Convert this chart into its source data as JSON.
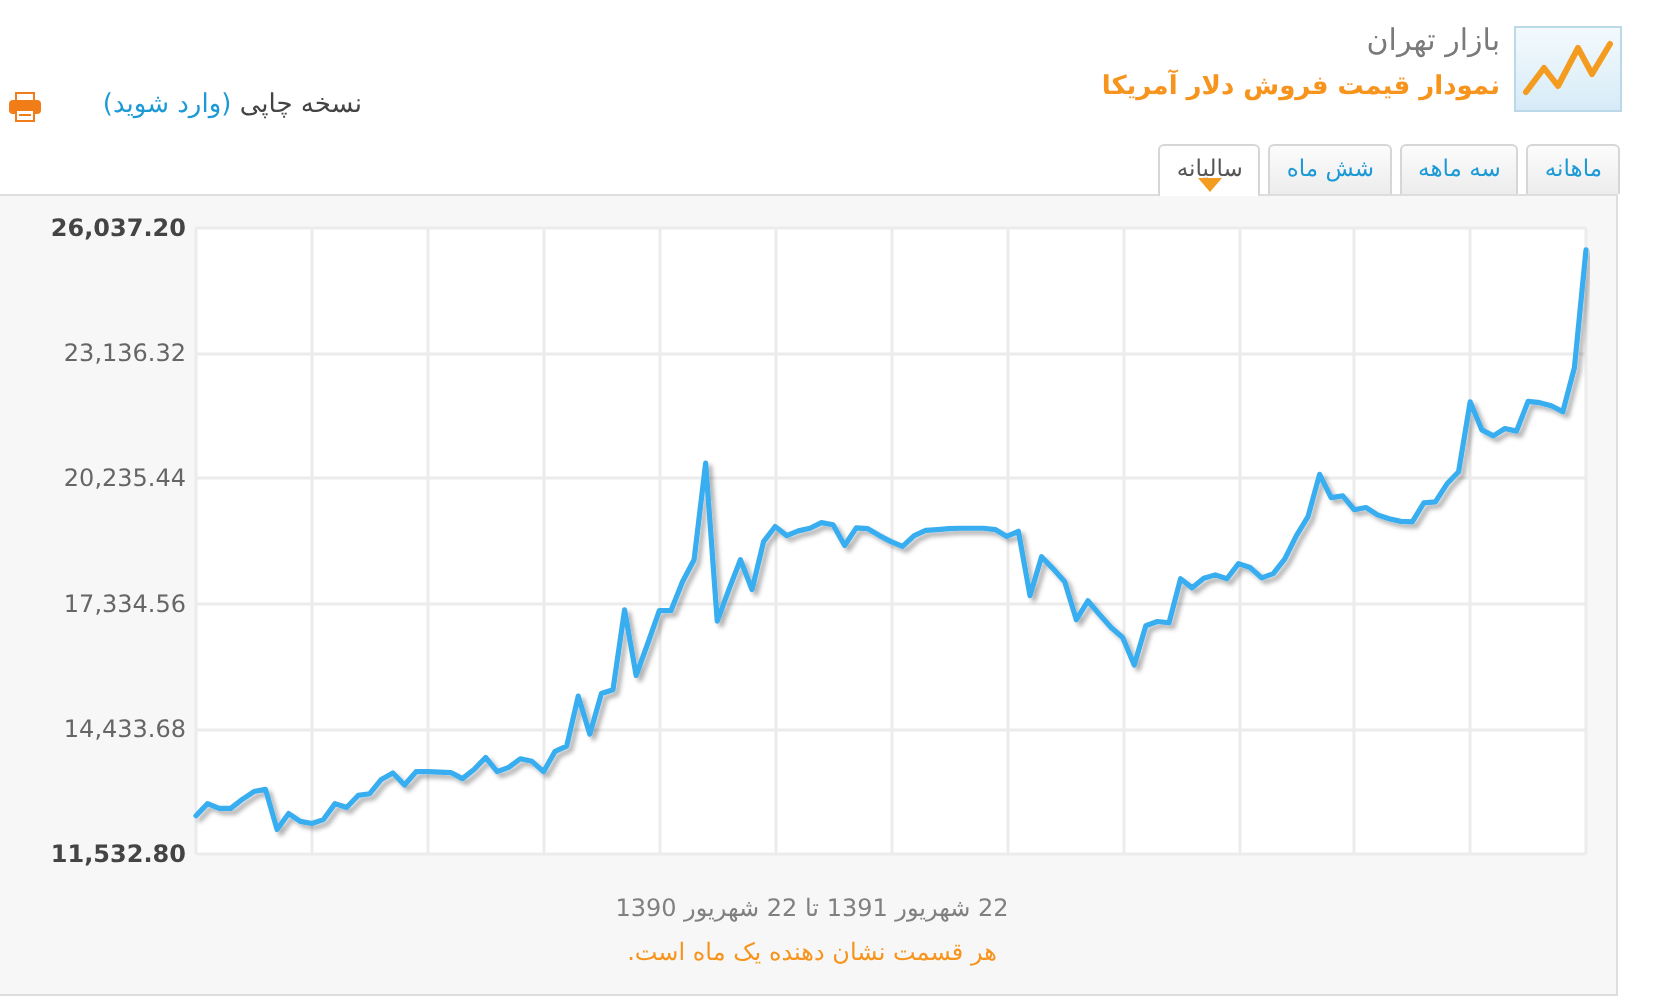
{
  "chart_data": {
    "type": "line",
    "title": "بازار تهران",
    "subtitle": "نمودار قیمت فروش دلار آمریکا",
    "xlabel": "22 شهریور 1391 تا 22 شهریور 1390",
    "annotations": [
      "نسخه چاپی",
      "(وارد شوید)",
      "ماهانه",
      "سه ماهه",
      "شش ماه",
      "سالیانه",
      "هر قسمت نشان دهنده یک ماه است."
    ],
    "categories": [
      null,
      null,
      null,
      null,
      null,
      null,
      null,
      null,
      null,
      null,
      null,
      null,
      null,
      null,
      null,
      null,
      null,
      null,
      null,
      null,
      null,
      null,
      null,
      null,
      null,
      null,
      null,
      null,
      null,
      null,
      null,
      null,
      null,
      null,
      null,
      null,
      null,
      null,
      null,
      null,
      null,
      null,
      null,
      null,
      null,
      null,
      null,
      null,
      null,
      null,
      null,
      null,
      null,
      null,
      null,
      null,
      null,
      null,
      null,
      null,
      null,
      null,
      null,
      null,
      null,
      null,
      null,
      null,
      null,
      null,
      null,
      null,
      null,
      null,
      null,
      null,
      null,
      null,
      null,
      null,
      null,
      null,
      null,
      null,
      null,
      null,
      null,
      null,
      null,
      null,
      null,
      null,
      null,
      null,
      null,
      null,
      null,
      null,
      null,
      null,
      null,
      null,
      null,
      null,
      null,
      null,
      null,
      null,
      null,
      null,
      null,
      null,
      null,
      null,
      null,
      null,
      null,
      null,
      null,
      null,
      null
    ],
    "values": [
      12420,
      12700,
      12590,
      12590,
      12800,
      12980,
      13030,
      12100,
      12470,
      12290,
      12240,
      12330,
      12700,
      12610,
      12890,
      12930,
      13260,
      13410,
      13130,
      13440,
      13440,
      13430,
      13420,
      13280,
      13490,
      13770,
      13440,
      13540,
      13740,
      13680,
      13440,
      13910,
      14030,
      15190,
      14310,
      15250,
      15340,
      17190,
      15670,
      16410,
      17170,
      17170,
      17840,
      18350,
      20590,
      16930,
      17660,
      18350,
      17660,
      18770,
      19120,
      18910,
      19020,
      19080,
      19210,
      19160,
      18680,
      19090,
      19070,
      18910,
      18770,
      18660,
      18910,
      19030,
      19050,
      19070,
      19080,
      19080,
      19080,
      19050,
      18890,
      19010,
      17520,
      18420,
      18140,
      17840,
      16960,
      17400,
      17080,
      16780,
      16550,
      15910,
      16820,
      16920,
      16890,
      17910,
      17700,
      17920,
      18000,
      17910,
      18260,
      18170,
      17930,
      18030,
      18370,
      18910,
      19350,
      20330,
      19790,
      19830,
      19510,
      19560,
      19390,
      19300,
      19240,
      19230,
      19670,
      19690,
      20110,
      20390,
      22010,
      21360,
      21220,
      21390,
      21330,
      22020,
      21990,
      21920,
      21780,
      22800,
      25530
    ],
    "color": "#39aef0",
    "ylim": [
      11532.8,
      26037.2
    ],
    "yticks": [
      {
        "value": 11532.8,
        "label": "11,532.80"
      },
      {
        "value": 14433.68,
        "label": "14,433.68"
      },
      {
        "value": 17334.56,
        "label": "17,334.56"
      },
      {
        "value": 20235.44,
        "label": "20,235.44"
      },
      {
        "value": 23136.32,
        "label": "23,136.32"
      },
      {
        "value": 26037.2,
        "label": "26,037.20"
      }
    ],
    "grid": true,
    "marker": "none",
    "line_style": "solid"
  }
}
